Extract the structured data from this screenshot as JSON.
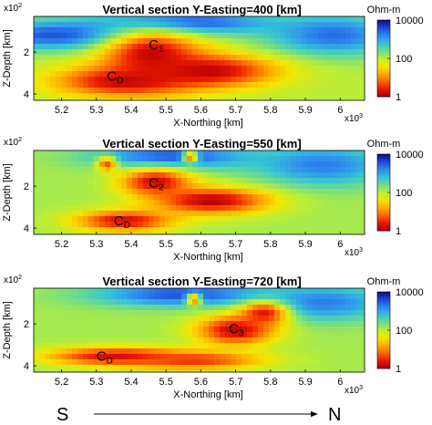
{
  "colors": {
    "cmap": [
      "#b30000",
      "#ee1c00",
      "#ff6a00",
      "#ffb000",
      "#f5e600",
      "#b9ee39",
      "#6fdc8a",
      "#35c4d4",
      "#2f8cf0",
      "#1f4fd8",
      "#16108f"
    ],
    "background_resistivity": "#45c1de"
  },
  "figure": {
    "direction_start": "S",
    "direction_end": "N"
  },
  "chart_data": [
    {
      "type": "heatmap",
      "title": "Vertical section Y-Easting=400 [km]",
      "xlabel": "X-Northing [km]",
      "ylabel": "Z-Depth [km]",
      "x_multiplier": "x10",
      "x_multiplier_exp": "3",
      "y_multiplier": "x10",
      "y_multiplier_exp": "2",
      "xlim": [
        5.12,
        6.07
      ],
      "ylim": [
        0.3,
        4.3
      ],
      "xticks": [
        "5.2",
        "5.3",
        "5.4",
        "5.5",
        "5.6",
        "5.7",
        "5.8",
        "5.9",
        "6"
      ],
      "yticks": [
        "2",
        "4"
      ],
      "colorbar": {
        "label": "Ohm-m",
        "ticks": [
          "10000",
          "100",
          "1"
        ],
        "scale": "log",
        "range": [
          1,
          10000
        ]
      },
      "annotations": [
        {
          "text": "C",
          "sub": "1",
          "x": 5.45,
          "y": 1.6
        },
        {
          "text": "C",
          "sub": "D",
          "x": 5.33,
          "y": 3.1
        }
      ],
      "background_log10": 2.0,
      "anomalies": [
        {
          "x": 5.2,
          "y": 1.2,
          "sx": 0.18,
          "sy": 0.5,
          "log10": 3.6
        },
        {
          "x": 5.55,
          "y": 0.6,
          "sx": 0.18,
          "sy": 0.4,
          "log10": 3.7
        },
        {
          "x": 5.98,
          "y": 1.2,
          "sx": 0.14,
          "sy": 0.7,
          "log10": 3.4
        },
        {
          "x": 5.46,
          "y": 2.1,
          "sx": 0.1,
          "sy": 0.8,
          "log10": 0.1
        },
        {
          "x": 5.62,
          "y": 2.9,
          "sx": 0.14,
          "sy": 0.55,
          "log10": 0.05
        },
        {
          "x": 5.38,
          "y": 3.4,
          "sx": 0.14,
          "sy": 0.5,
          "log10": 0.1
        }
      ]
    },
    {
      "type": "heatmap",
      "title": "Vertical section Y-Easting=550 [km]",
      "xlabel": "X-Northing [km]",
      "ylabel": "Z-Depth [km]",
      "x_multiplier": "x10",
      "x_multiplier_exp": "3",
      "y_multiplier": "x10",
      "y_multiplier_exp": "2",
      "xlim": [
        5.12,
        6.07
      ],
      "ylim": [
        0.3,
        4.3
      ],
      "xticks": [
        "5.2",
        "5.3",
        "5.4",
        "5.5",
        "5.6",
        "5.7",
        "5.8",
        "5.9",
        "6"
      ],
      "yticks": [
        "2",
        "4"
      ],
      "colorbar": {
        "label": "Ohm-m",
        "ticks": [
          "10000",
          "100",
          "1"
        ],
        "scale": "log",
        "range": [
          1,
          10000
        ]
      },
      "annotations": [
        {
          "text": "C",
          "sub": "2",
          "x": 5.45,
          "y": 1.8
        },
        {
          "text": "C",
          "sub": "D",
          "x": 5.35,
          "y": 3.6
        }
      ],
      "background_log10": 2.1,
      "anomalies": [
        {
          "x": 5.52,
          "y": 0.6,
          "sx": 0.16,
          "sy": 0.4,
          "log10": 3.6
        },
        {
          "x": 5.95,
          "y": 1.0,
          "sx": 0.14,
          "sy": 0.7,
          "log10": 3.3
        },
        {
          "x": 5.33,
          "y": 0.95,
          "sx": 0.02,
          "sy": 0.25,
          "log10": 0.7
        },
        {
          "x": 5.57,
          "y": 0.6,
          "sx": 0.015,
          "sy": 0.2,
          "log10": 0.8
        },
        {
          "x": 5.47,
          "y": 1.8,
          "sx": 0.07,
          "sy": 0.45,
          "log10": 0.15
        },
        {
          "x": 5.63,
          "y": 2.7,
          "sx": 0.12,
          "sy": 0.45,
          "log10": 0.05
        },
        {
          "x": 5.38,
          "y": 3.65,
          "sx": 0.1,
          "sy": 0.35,
          "log10": 0.2
        }
      ]
    },
    {
      "type": "heatmap",
      "title": "Vertical section Y-Easting=720 [km]",
      "xlabel": "X-Northing [km]",
      "ylabel": "Z-Depth [km]",
      "x_multiplier": "x10",
      "x_multiplier_exp": "3",
      "y_multiplier": "x10",
      "y_multiplier_exp": "2",
      "xlim": [
        5.12,
        6.07
      ],
      "ylim": [
        0.3,
        4.3
      ],
      "xticks": [
        "5.2",
        "5.3",
        "5.4",
        "5.5",
        "5.6",
        "5.7",
        "5.8",
        "5.9",
        "6"
      ],
      "yticks": [
        "2",
        "4"
      ],
      "colorbar": {
        "label": "Ohm-m",
        "ticks": [
          "10000",
          "100",
          "1"
        ],
        "scale": "log",
        "range": [
          1,
          10000
        ]
      },
      "annotations": [
        {
          "text": "C",
          "sub": "3",
          "x": 5.68,
          "y": 2.2
        },
        {
          "text": "C",
          "sub": "D",
          "x": 5.3,
          "y": 3.5
        }
      ],
      "background_log10": 2.1,
      "anomalies": [
        {
          "x": 5.55,
          "y": 0.6,
          "sx": 0.18,
          "sy": 0.4,
          "log10": 3.6
        },
        {
          "x": 5.95,
          "y": 1.0,
          "sx": 0.14,
          "sy": 0.6,
          "log10": 3.3
        },
        {
          "x": 5.58,
          "y": 0.85,
          "sx": 0.015,
          "sy": 0.2,
          "log10": 0.8
        },
        {
          "x": 5.7,
          "y": 2.3,
          "sx": 0.08,
          "sy": 0.5,
          "log10": 0.1
        },
        {
          "x": 5.78,
          "y": 1.5,
          "sx": 0.05,
          "sy": 0.4,
          "log10": 0.3
        },
        {
          "x": 5.36,
          "y": 3.55,
          "sx": 0.14,
          "sy": 0.3,
          "log10": 0.15
        },
        {
          "x": 5.58,
          "y": 3.75,
          "sx": 0.14,
          "sy": 0.3,
          "log10": 0.5
        }
      ]
    }
  ]
}
